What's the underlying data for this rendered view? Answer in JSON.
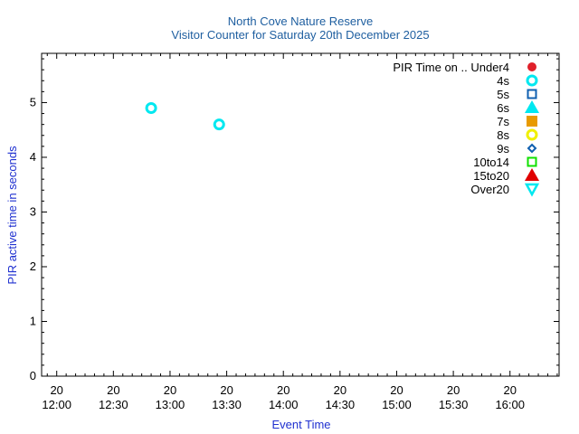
{
  "chart_data": {
    "type": "scatter",
    "title": "North Cove Nature Reserve",
    "subtitle": "Visitor Counter for Saturday 20th December 2025",
    "xlabel": "Event Time",
    "ylabel": "PIR active time in seconds",
    "xlim": [
      "11:52",
      "16:26"
    ],
    "ylim": [
      0,
      5.9
    ],
    "x_ticks": [
      {
        "time": "12:00",
        "day": "20",
        "time_label": "12:00"
      },
      {
        "time": "12:30",
        "day": "20",
        "time_label": "12:30"
      },
      {
        "time": "13:00",
        "day": "20",
        "time_label": "13:00"
      },
      {
        "time": "13:30",
        "day": "20",
        "time_label": "13:30"
      },
      {
        "time": "14:00",
        "day": "20",
        "time_label": "14:00"
      },
      {
        "time": "14:30",
        "day": "20",
        "time_label": "14:30"
      },
      {
        "time": "15:00",
        "day": "20",
        "time_label": "15:00"
      },
      {
        "time": "15:30",
        "day": "20",
        "time_label": "15:30"
      },
      {
        "time": "16:00",
        "day": "20",
        "time_label": "16:00"
      }
    ],
    "y_ticks": [
      0,
      1,
      2,
      3,
      4,
      5
    ],
    "grid": false,
    "legend_position": "top-right",
    "legend_title": "PIR Time on ..",
    "series": [
      {
        "name": "Under4",
        "marker": "filled-circle",
        "color": "#e0202a",
        "points": []
      },
      {
        "name": "4s",
        "marker": "open-circle",
        "color": "#00e8f0",
        "points": [
          {
            "x": "12:50",
            "y": 4.9
          },
          {
            "x": "13:26",
            "y": 4.6
          }
        ]
      },
      {
        "name": "5s",
        "marker": "open-square",
        "color": "#1060b0",
        "points": []
      },
      {
        "name": "6s",
        "marker": "filled-triangle-up",
        "color": "#00e8f0",
        "points": []
      },
      {
        "name": "7s",
        "marker": "filled-square",
        "color": "#e89a00",
        "points": []
      },
      {
        "name": "8s",
        "marker": "open-circle",
        "color": "#f0f000",
        "points": []
      },
      {
        "name": "9s",
        "marker": "open-diamond",
        "color": "#1060b0",
        "points": []
      },
      {
        "name": "10to14",
        "marker": "open-square",
        "color": "#10e000",
        "points": []
      },
      {
        "name": "15to20",
        "marker": "filled-triangle-up",
        "color": "#e00000",
        "points": []
      },
      {
        "name": "Over20",
        "marker": "open-triangle-down",
        "color": "#00e8f0",
        "points": []
      }
    ]
  }
}
